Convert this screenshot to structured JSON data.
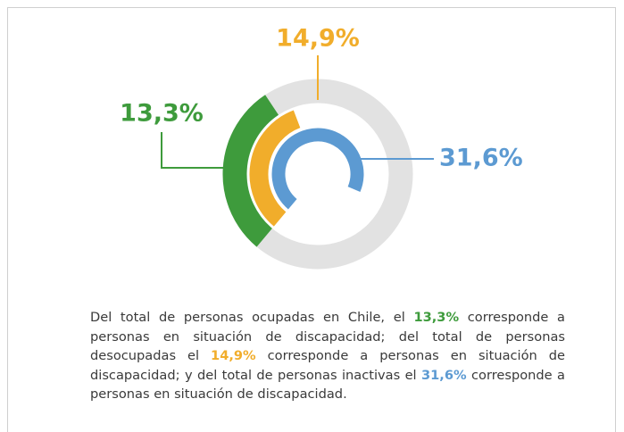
{
  "chart_data": {
    "type": "radial",
    "values": [
      13.3,
      14.9,
      31.6
    ],
    "value_labels": [
      "13,3%",
      "14,9%",
      "31,6%"
    ],
    "colors": [
      "#3e9b3c",
      "#f1ad2b",
      "#5c9ad2"
    ],
    "track_color": "#e2e2e2"
  },
  "description": [
    "Del total de personas ocupadas en Chile, el ",
    " corresponde a personas en situación de discapacidad; del total de personas desocupadas el ",
    " corresponde a personas en situación de discapacidad; y del total de personas inactivas el ",
    " corresponde a personas en situación de discapacidad."
  ]
}
